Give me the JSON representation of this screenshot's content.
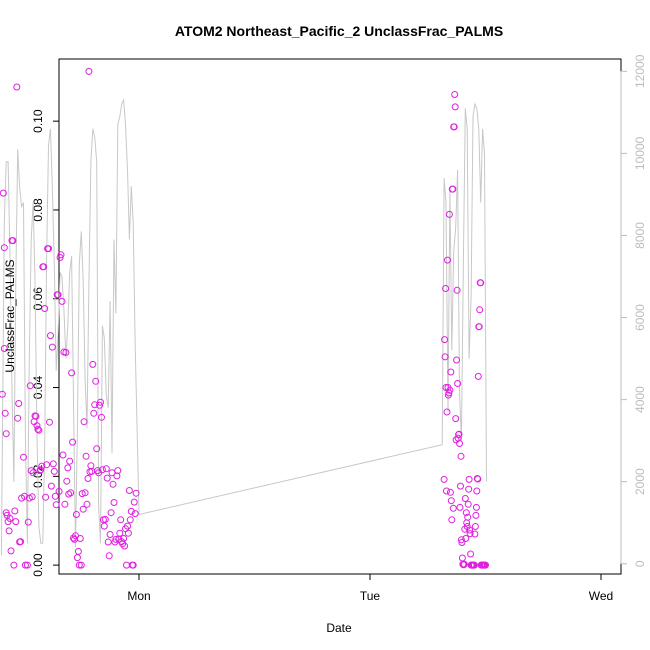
{
  "chart_data": {
    "type": "scatter",
    "title": "ATOM2 Northeast_Pacific_2 UnclassFrac_PALMS",
    "xlabel": "Date",
    "ylabel": "UnclassFrac_PALMS",
    "x_ticks": [
      "Mon",
      "Tue",
      "Wed"
    ],
    "y_ticks": [
      "0.00",
      "0.02",
      "0.04",
      "0.06",
      "0.08",
      "0.10"
    ],
    "y_right_ticks": [
      "0",
      "2000",
      "4000",
      "6000",
      "8000",
      "10000",
      "12000"
    ],
    "ylim": [
      -0.002,
      0.114
    ],
    "y_right_lim": [
      -250,
      12300
    ],
    "xlim_hours": [
      -16.2,
      36.3
    ],
    "colors": {
      "points": "#e020e0",
      "line": "#c8c8c8",
      "right_axis": "#bdbdbd"
    },
    "series_points_x_hours": [
      -14.2,
      -14.1,
      -14.0,
      -14.0,
      -13.9,
      -13.8,
      -13.8,
      -13.7,
      -13.6,
      -13.5,
      -13.4,
      -13.3,
      -13.2,
      -13.1,
      -13.0,
      -12.9,
      -12.8,
      -12.7,
      -12.6,
      -12.5,
      -12.4,
      -12.3,
      -12.2,
      -12.0,
      -11.9,
      -11.8,
      -11.6,
      -11.5,
      -11.4,
      -11.3,
      -11.2,
      -11.1,
      -11.0,
      -10.9,
      -10.8,
      -10.7,
      -10.6,
      -10.5,
      -10.4,
      -10.3,
      -10.2,
      -10.1,
      -10.0,
      -9.9,
      -9.8,
      -9.7,
      -9.6,
      -9.5,
      -9.4,
      -9.3,
      -9.2,
      -9.1,
      -9.0,
      -8.9,
      -8.8,
      -8.7,
      -8.6,
      -8.5,
      -8.4,
      -8.3,
      -8.2,
      -8.1,
      -8.0,
      -7.9,
      -7.8,
      -7.7,
      -7.6,
      -7.5,
      -7.4,
      -7.3,
      -7.2,
      -7.1,
      -7.0,
      -6.9,
      -6.8,
      -6.7,
      -6.6,
      -6.5,
      -6.4,
      -6.3,
      -6.2,
      -6.1,
      -6.0,
      -5.9,
      -5.8,
      -5.7,
      -5.6,
      -5.5,
      -5.4,
      -5.3,
      -5.2,
      -5.1,
      -5.0,
      -4.9,
      -4.8,
      -4.7,
      -4.6,
      -4.5,
      -4.4,
      -4.3,
      -4.2,
      -4.1,
      -4.0,
      -3.9,
      -3.8,
      -3.7,
      -3.6,
      -3.5,
      -3.4,
      -3.3,
      -3.2,
      -3.1,
      -3.0,
      -2.9,
      -2.8,
      -2.7,
      -2.6,
      -2.5,
      -2.4,
      -2.3,
      -2.2,
      -2.1,
      -2.0,
      -1.9,
      -1.8,
      -1.7,
      -1.6,
      -1.5,
      -1.4,
      -1.3,
      -1.2,
      -1.1,
      -1.0,
      -0.9,
      -0.8,
      -0.7,
      -0.6,
      -0.5,
      -0.4,
      -0.3,
      -0.2,
      -0.1,
      0.0
    ],
    "series_points_y": [
      0.0385,
      0.0838,
      0.0715,
      0.0488,
      0.0342,
      0.0296,
      0.0118,
      0.0112,
      0.0098,
      0.0077,
      0.0105,
      0.0032,
      0.0731,
      0.0731,
      0.0,
      0.0122,
      0.0098,
      0.1077,
      0.0331,
      0.0364,
      0.0052,
      0.0053,
      0.0151,
      0.0243,
      0.0155,
      0.0,
      0.0,
      0.0097,
      0.0151,
      0.0404,
      0.0213,
      0.0154,
      0.0208,
      0.0323,
      0.0336,
      0.0335,
      0.0314,
      0.0306,
      0.0304,
      0.0213,
      0.0215,
      0.0223,
      0.0672,
      0.0672,
      0.0578,
      0.0153,
      0.0226,
      0.0713,
      0.0713,
      0.0322,
      0.0517,
      0.0178,
      0.0491,
      0.0228,
      0.0211,
      0.0155,
      0.0136,
      0.0609,
      0.0609,
      0.0166,
      0.0693,
      0.0699,
      0.0594,
      0.0248,
      0.048,
      0.0137,
      0.0479,
      0.0189,
      0.0219,
      0.016,
      0.0234,
      0.0163,
      0.0433,
      0.0277,
      0.0061,
      0.0058,
      0.0066,
      0.0114,
      0.0017,
      0.0031,
      0.0,
      0.006,
      0.0,
      0.0161,
      0.0126,
      0.0323,
      0.0163,
      0.0245,
      0.0137,
      0.0195,
      0.1112,
      0.021,
      0.0224,
      0.0211,
      0.0452,
      0.0342,
      0.0361,
      0.0414,
      0.0262,
      0.0213,
      0.0208,
      0.036,
      0.0367,
      0.0333,
      0.0215,
      0.0102,
      0.0088,
      0.0103,
      0.0217,
      0.0196,
      0.0052,
      0.0021,
      0.0069,
      0.0118,
      0.0208,
      0.0182,
      0.0141,
      0.0052,
      0.0058,
      0.0201,
      0.0213,
      0.0058,
      0.0072,
      0.0102,
      0.0053,
      0.0048,
      0.006,
      0.0043,
      0.0082,
      0.0,
      0.0088,
      0.0072,
      0.0168,
      0.0102,
      0.0121,
      0.0,
      0.0,
      0.0142,
      0.0116,
      0.0162
    ],
    "series2_points_x_hours": [
      31.7,
      31.75,
      31.8,
      31.85,
      31.9,
      31.95,
      32.0,
      32.05,
      32.1,
      32.15,
      32.2,
      32.25,
      32.3,
      32.35,
      32.4,
      32.45,
      32.5,
      32.55,
      32.6,
      32.65,
      32.7,
      32.75,
      32.8,
      32.85,
      32.9,
      32.95,
      33.0,
      33.05,
      33.1,
      33.15,
      33.2,
      33.25,
      33.3,
      33.35,
      33.4,
      33.45,
      33.5,
      33.55,
      33.6,
      33.65,
      33.7,
      33.75,
      33.8,
      33.85,
      33.9,
      33.95,
      34.0,
      34.05,
      34.1,
      34.15,
      34.2,
      34.25,
      34.3,
      34.35,
      34.4,
      34.45,
      34.5,
      34.55,
      34.6,
      34.65,
      34.7,
      34.75,
      34.8,
      34.85,
      34.9,
      34.95,
      35.0,
      35.05,
      35.1,
      35.15,
      35.2,
      35.25,
      35.3,
      35.35,
      35.4,
      35.45,
      35.5,
      35.55,
      35.6,
      35.65,
      35.7,
      35.75,
      35.8,
      35.85,
      35.9,
      35.95,
      36.0
    ],
    "series2_points_y": [
      0.0193,
      0.0508,
      0.0469,
      0.0623,
      0.04,
      0.0167,
      0.0345,
      0.0687,
      0.04,
      0.0383,
      0.0388,
      0.079,
      0.0394,
      0.0164,
      0.0435,
      0.0145,
      0.0102,
      0.0847,
      0.0847,
      0.0128,
      0.0987,
      0.0987,
      0.106,
      0.1032,
      0.033,
      0.0282,
      0.0462,
      0.0619,
      0.0409,
      0.0286,
      0.0294,
      0.0295,
      0.0274,
      0.013,
      0.0178,
      0.0245,
      0.0057,
      0.0051,
      0.0016,
      0.0002,
      0.0001,
      0.0001,
      0.0002,
      0.0081,
      0.015,
      0.006,
      0.0118,
      0.0095,
      0.0087,
      0.0108,
      0.0137,
      0.0171,
      0.0193,
      0.0079,
      0.0071,
      0.0025,
      0.0,
      0.0,
      0.0,
      0.0,
      0.0,
      0.0,
      0.0,
      0.0,
      0.007,
      0.0087,
      0.0112,
      0.013,
      0.0167,
      0.0195,
      0.0194,
      0.0425,
      0.0537,
      0.0537,
      0.0575,
      0.0636,
      0.0636,
      0.0,
      0.0,
      0.0,
      0.0,
      0.0,
      0.0,
      0.0,
      0.0,
      0.0,
      0.0
    ],
    "line_x_hours": [
      -14.3,
      -14.0,
      -13.8,
      -13.6,
      -13.4,
      -13.2,
      -13.0,
      -12.8,
      -12.6,
      -12.4,
      -12.2,
      -12.0,
      -11.8,
      -11.6,
      -11.4,
      -11.2,
      -11.0,
      -10.8,
      -10.6,
      -10.4,
      -10.2,
      -10.0,
      -9.8,
      -9.6,
      -9.4,
      -9.2,
      -9.0,
      -8.8,
      -8.6,
      -8.4,
      -8.2,
      -8.0,
      -7.8,
      -7.6,
      -7.4,
      -7.2,
      -7.0,
      -6.8,
      -6.6,
      -6.4,
      -6.2,
      -6.0,
      -5.8,
      -5.6,
      -5.4,
      -5.2,
      -5.0,
      -4.8,
      -4.6,
      -4.4,
      -4.2,
      -4.0,
      -3.8,
      -3.6,
      -3.4,
      -3.2,
      -3.0,
      -2.8,
      -2.6,
      -2.4,
      -2.2,
      -2.0,
      -1.8,
      -1.6,
      -1.4,
      -1.2,
      -1.0,
      -0.8,
      -0.6,
      -0.4,
      -0.2,
      0.0,
      31.5,
      31.7,
      31.9,
      32.1,
      32.3,
      32.5,
      32.7,
      32.9,
      33.1,
      33.3,
      33.5,
      33.7,
      33.9,
      34.1,
      34.3,
      34.5,
      34.7,
      34.9,
      35.1,
      35.3,
      35.5,
      35.7,
      35.9,
      36.1
    ],
    "line_y_right": [
      200,
      8300,
      9800,
      9800,
      7500,
      4200,
      2000,
      6900,
      10100,
      9200,
      8700,
      8800,
      3100,
      500,
      5000,
      7900,
      8800,
      6900,
      3100,
      900,
      500,
      500,
      2900,
      7400,
      10200,
      10600,
      9100,
      7300,
      4700,
      5600,
      7100,
      7000,
      6200,
      5000,
      5800,
      7100,
      7500,
      4000,
      400,
      3300,
      7300,
      8100,
      6900,
      4500,
      3300,
      6800,
      9800,
      10600,
      10400,
      9800,
      1400,
      500,
      5800,
      5500,
      4100,
      3800,
      6400,
      2700,
      7900,
      6100,
      10700,
      10900,
      11200,
      11300,
      10700,
      9600,
      7900,
      9200,
      8300,
      5300,
      3300,
      1200,
      2900,
      9400,
      8800,
      3700,
      9100,
      5200,
      7600,
      8200,
      9600,
      4200,
      3000,
      7400,
      11100,
      10600,
      5000,
      6500,
      10900,
      11200,
      11100,
      10600,
      8800,
      10600,
      10000,
      2000
    ]
  },
  "labels": {
    "title": "ATOM2 Northeast_Pacific_2 UnclassFrac_PALMS",
    "xlabel": "Date",
    "ylabel": "UnclassFrac_PALMS"
  }
}
